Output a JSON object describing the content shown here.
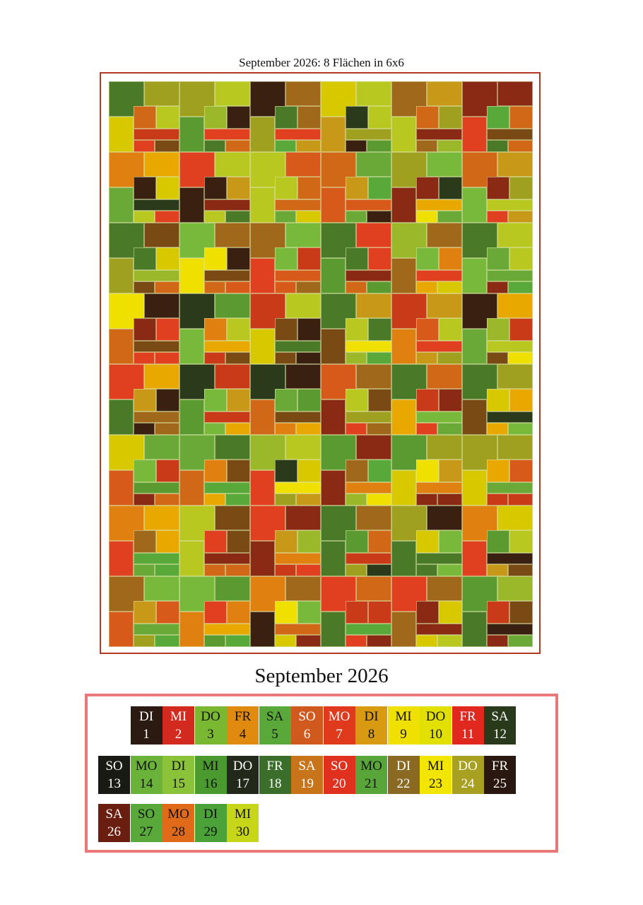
{
  "art": {
    "title": "September 2026: 8 Flächen in 6x6"
  },
  "calendar": {
    "title": "September 2026",
    "days": [
      {
        "dow": "DI",
        "day": "1",
        "color": "#2a1a12",
        "text": "#ffffff"
      },
      {
        "dow": "MI",
        "day": "2",
        "color": "#d22a1e",
        "text": "#ffffff"
      },
      {
        "dow": "DO",
        "day": "3",
        "color": "#7ab831",
        "text": "#111111"
      },
      {
        "dow": "FR",
        "day": "4",
        "color": "#e08a10",
        "text": "#111111"
      },
      {
        "dow": "SA",
        "day": "5",
        "color": "#5aa83a",
        "text": "#111111"
      },
      {
        "dow": "SO",
        "day": "6",
        "color": "#d05a1e",
        "text": "#ffffff"
      },
      {
        "dow": "MO",
        "day": "7",
        "color": "#e03a1c",
        "text": "#ffffff"
      },
      {
        "dow": "DI",
        "day": "8",
        "color": "#d89a10",
        "text": "#111111"
      },
      {
        "dow": "MI",
        "day": "9",
        "color": "#f0e000",
        "text": "#111111"
      },
      {
        "dow": "DO",
        "day": "10",
        "color": "#e2e000",
        "text": "#111111"
      },
      {
        "dow": "FR",
        "day": "11",
        "color": "#e0281e",
        "text": "#ffffff"
      },
      {
        "dow": "SA",
        "day": "12",
        "color": "#283a1a",
        "text": "#ffffff"
      },
      {
        "dow": "SO",
        "day": "13",
        "color": "#1a1a14",
        "text": "#ffffff"
      },
      {
        "dow": "MO",
        "day": "14",
        "color": "#6ab23a",
        "text": "#111111"
      },
      {
        "dow": "DI",
        "day": "15",
        "color": "#8ac23a",
        "text": "#111111"
      },
      {
        "dow": "MI",
        "day": "16",
        "color": "#4a9a30",
        "text": "#111111"
      },
      {
        "dow": "DO",
        "day": "17",
        "color": "#22281a",
        "text": "#ffffff"
      },
      {
        "dow": "FR",
        "day": "18",
        "color": "#3a6e2a",
        "text": "#ffffff"
      },
      {
        "dow": "SA",
        "day": "19",
        "color": "#c8741a",
        "text": "#ffffff"
      },
      {
        "dow": "SO",
        "day": "20",
        "color": "#e0301e",
        "text": "#ffffff"
      },
      {
        "dow": "MO",
        "day": "21",
        "color": "#58a63a",
        "text": "#111111"
      },
      {
        "dow": "DI",
        "day": "22",
        "color": "#8a6a22",
        "text": "#ffffff"
      },
      {
        "dow": "MI",
        "day": "23",
        "color": "#f2e600",
        "text": "#111111"
      },
      {
        "dow": "DO",
        "day": "24",
        "color": "#a8a020",
        "text": "#ffffff"
      },
      {
        "dow": "FR",
        "day": "25",
        "color": "#2a1810",
        "text": "#ffffff"
      },
      {
        "dow": "SA",
        "day": "26",
        "color": "#6a1e10",
        "text": "#ffffff"
      },
      {
        "dow": "SO",
        "day": "27",
        "color": "#58a83a",
        "text": "#111111"
      },
      {
        "dow": "MO",
        "day": "28",
        "color": "#e06a1a",
        "text": "#111111"
      },
      {
        "dow": "DI",
        "day": "29",
        "color": "#4aa238",
        "text": "#111111"
      },
      {
        "dow": "MI",
        "day": "30",
        "color": "#c8d61a",
        "text": "#111111"
      }
    ]
  },
  "palette": [
    "#78b83a",
    "#e04020",
    "#d8c800",
    "#a0681a",
    "#2a3a1a",
    "#d06818",
    "#5a9a30",
    "#8a2a14",
    "#e8a800",
    "#b8c820",
    "#4a7a28",
    "#c83a18",
    "#a0a020",
    "#e08010",
    "#3a2010",
    "#f0e000",
    "#6aa838",
    "#9ab82a",
    "#d85a1a",
    "#7a4a14",
    "#58a83a",
    "#c89818"
  ],
  "colors": {
    "frame": "#b23a22",
    "calendar_border": "#e8787a"
  }
}
